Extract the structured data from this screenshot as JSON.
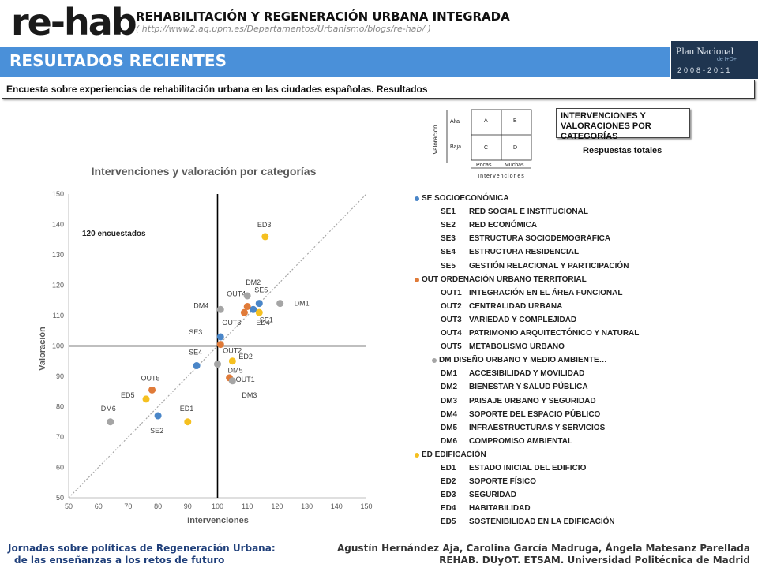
{
  "header": {
    "logo": "re-hab",
    "title": "REHABILITACIÓN Y REGENERACIÓN URBANA INTEGRADA",
    "url": "( http://www2.aq.upm.es/Departamentos/Urbanismo/blogs/re-hab/ )"
  },
  "banner": {
    "title": "RESULTADOS RECIENTES"
  },
  "plan_logo": {
    "name": "Plan Nacional",
    "sub": "de I+D+i",
    "years": "2008-2011"
  },
  "subtitle": "Encuesta sobre experiencias de rehabilitación urbana en las ciudades españolas. Resultados",
  "matrix": {
    "ylabel": "Valoración",
    "rows": [
      "Alta",
      "Baja"
    ],
    "cells": [
      "A",
      "B",
      "C",
      "D"
    ],
    "cols": [
      "Pocas",
      "Muchas"
    ],
    "xlabel": "Intervenciones"
  },
  "category_box": "INTERVENCIONES Y VALORACIONES POR CATEGORÍAS",
  "totals_label": "Respuestas totales",
  "respondents": "120 encuestados",
  "colors": {
    "SE": "#4a86c8",
    "OUT": "#e07b39",
    "DM": "#a5a5a5",
    "ED": "#f5c020",
    "accent": "#4a90d9"
  },
  "chart_data": {
    "type": "scatter",
    "title": "Intervenciones y valoración por categorías",
    "xlabel": "Intervenciones",
    "ylabel": "Valoración",
    "xlim": [
      50,
      150
    ],
    "ylim": [
      50,
      150
    ],
    "xticks": [
      50,
      60,
      70,
      80,
      90,
      100,
      110,
      120,
      130,
      140,
      150
    ],
    "yticks": [
      50,
      60,
      70,
      80,
      90,
      100,
      110,
      120,
      130,
      140,
      150
    ],
    "reference_lines": {
      "x": 100,
      "y": 100,
      "diagonal": true
    },
    "grid": false,
    "series": [
      {
        "name": "SE SOCIOECONÓMICA",
        "key": "SE",
        "points": [
          {
            "label": "SE1",
            "x": 112,
            "y": 112
          },
          {
            "label": "SE2",
            "x": 80,
            "y": 77
          },
          {
            "label": "SE3",
            "x": 101,
            "y": 103
          },
          {
            "label": "SE4",
            "x": 93,
            "y": 93.5
          },
          {
            "label": "SE5",
            "x": 114,
            "y": 114
          }
        ]
      },
      {
        "name": "OUT ORDENACIÓN URBANO TERRITORIAL",
        "key": "OUT",
        "points": [
          {
            "label": "OUT1",
            "x": 104,
            "y": 89.5
          },
          {
            "label": "OUT2",
            "x": 101,
            "y": 100.5
          },
          {
            "label": "OUT3",
            "x": 109,
            "y": 111
          },
          {
            "label": "OUT4",
            "x": 110,
            "y": 113
          },
          {
            "label": "OUT5",
            "x": 78,
            "y": 85.5
          }
        ]
      },
      {
        "name": "DM DISEÑO URBANO Y MEDIO AMBIENTE…",
        "key": "DM",
        "points": [
          {
            "label": "DM1",
            "x": 121,
            "y": 114
          },
          {
            "label": "DM2",
            "x": 110,
            "y": 116.5
          },
          {
            "label": "DM3",
            "x": 105,
            "y": 88.5
          },
          {
            "label": "DM4",
            "x": 101,
            "y": 112
          },
          {
            "label": "DM5",
            "x": 100,
            "y": 94
          },
          {
            "label": "DM6",
            "x": 64,
            "y": 75
          }
        ]
      },
      {
        "name": "ED EDIFICACIÓN",
        "key": "ED",
        "points": [
          {
            "label": "ED1",
            "x": 90,
            "y": 75
          },
          {
            "label": "ED2",
            "x": 105,
            "y": 95
          },
          {
            "label": "ED3",
            "x": 116,
            "y": 136
          },
          {
            "label": "ED4",
            "x": 114,
            "y": 111
          },
          {
            "label": "ED5",
            "x": 76,
            "y": 82.5
          }
        ]
      }
    ]
  },
  "legend": [
    {
      "type": "group",
      "key": "SE",
      "text": "SE SOCIOECONÓMICA"
    },
    {
      "type": "item",
      "code": "SE1",
      "text": "RED SOCIAL E INSTITUCIONAL"
    },
    {
      "type": "item",
      "code": "SE2",
      "text": "RED ECONÓMICA"
    },
    {
      "type": "item",
      "code": "SE3",
      "text": "ESTRUCTURA SOCIODEMOGRÁFICA"
    },
    {
      "type": "item",
      "code": "SE4",
      "text": "ESTRUCTURA RESIDENCIAL"
    },
    {
      "type": "item",
      "code": "SE5",
      "text": "GESTIÓN RELACIONAL Y PARTICIPACIÓN"
    },
    {
      "type": "group",
      "key": "OUT",
      "text": "OUT ORDENACIÓN URBANO TERRITORIAL"
    },
    {
      "type": "item",
      "code": "OUT1",
      "text": "INTEGRACIÓN EN EL ÁREA FUNCIONAL"
    },
    {
      "type": "item",
      "code": "OUT2",
      "text": "CENTRALIDAD URBANA"
    },
    {
      "type": "item",
      "code": "OUT3",
      "text": "VARIEDAD Y COMPLEJIDAD"
    },
    {
      "type": "item",
      "code": "OUT4",
      "text": "PATRIMONIO ARQUITECTÓNICO Y NATURAL"
    },
    {
      "type": "item",
      "code": "OUT5",
      "text": "METABOLISMO URBANO"
    },
    {
      "type": "group",
      "key": "DM",
      "text": "DM DISEÑO URBANO Y MEDIO AMBIENTE…"
    },
    {
      "type": "item",
      "code": "DM1",
      "text": "ACCESIBILIDAD Y MOVILIDAD"
    },
    {
      "type": "item",
      "code": "DM2",
      "text": "BIENESTAR Y SALUD PÚBLICA"
    },
    {
      "type": "item",
      "code": "DM3",
      "text": "PAISAJE URBANO Y SEGURIDAD"
    },
    {
      "type": "item",
      "code": "DM4",
      "text": "SOPORTE DEL ESPACIO PÚBLICO"
    },
    {
      "type": "item",
      "code": "DM5",
      "text": "INFRAESTRUCTURAS Y SERVICIOS"
    },
    {
      "type": "item",
      "code": "DM6",
      "text": "COMPROMISO AMBIENTAL"
    },
    {
      "type": "group",
      "key": "ED",
      "text": "ED EDIFICACIÓN"
    },
    {
      "type": "item",
      "code": "ED1",
      "text": "ESTADO INICIAL DEL EDIFICIO"
    },
    {
      "type": "item",
      "code": "ED2",
      "text": "SOPORTE FÍSICO"
    },
    {
      "type": "item",
      "code": "ED3",
      "text": "SEGURIDAD"
    },
    {
      "type": "item",
      "code": "ED4",
      "text": "HABITABILIDAD"
    },
    {
      "type": "item",
      "code": "ED5",
      "text": "SOSTENIBILIDAD EN LA EDIFICACIÓN"
    }
  ],
  "footer": {
    "left_line1": "Jornadas sobre políticas de Regeneración Urbana:",
    "left_line2": "de las enseñanzas a los retos de futuro",
    "right_line1": "Agustín Hernández Aja, Carolina García Madruga, Ángela Matesanz Parellada",
    "right_line2": "REHAB. DUyOT. ETSAM. Universidad Politécnica de Madrid"
  }
}
